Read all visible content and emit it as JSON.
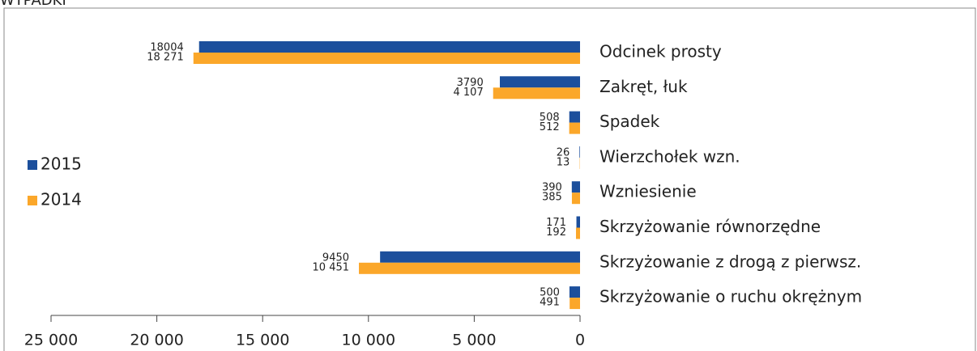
{
  "chart_data": {
    "type": "hbar",
    "title": "WYPADKI",
    "categories": [
      "Odcinek prosty",
      "Zakręt, łuk",
      "Spadek",
      "Wierzchołek wzn.",
      "Wzniesienie",
      "Skrzyżowanie równorzędne",
      "Skrzyżowanie z drogą z pierwsz.",
      "Skrzyżowanie o ruchu okrężnym"
    ],
    "series": [
      {
        "name": "2015",
        "color": "#1c4f9c",
        "values": [
          18004,
          3790,
          508,
          26,
          390,
          171,
          9450,
          500
        ]
      },
      {
        "name": "2014",
        "color": "#fba72a",
        "values": [
          18271,
          4107,
          512,
          13,
          385,
          192,
          10451,
          491
        ],
        "value_labels": [
          "18 271",
          "4 107",
          "512",
          "13",
          "385",
          "192",
          "10 451",
          "491"
        ]
      }
    ],
    "xlim": [
      25000,
      0
    ],
    "xticks": [
      {
        "value": 25000,
        "label": "25 000"
      },
      {
        "value": 20000,
        "label": "20 000"
      },
      {
        "value": 15000,
        "label": "15 000"
      },
      {
        "value": 10000,
        "label": "10 000"
      },
      {
        "value": 5000,
        "label": "5 000"
      },
      0
    ],
    "legend": "left"
  }
}
